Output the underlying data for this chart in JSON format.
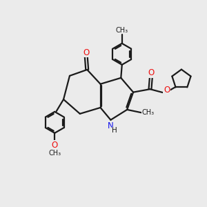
{
  "bg_color": "#ebebeb",
  "bond_color": "#1a1a1a",
  "bond_lw": 1.6,
  "N_color": "#1010ee",
  "O_color": "#ee1010",
  "text_color": "#1a1a1a",
  "figsize": [
    3.0,
    3.0
  ],
  "dpi": 100,
  "xlim": [
    0,
    10
  ],
  "ylim": [
    0,
    10
  ]
}
